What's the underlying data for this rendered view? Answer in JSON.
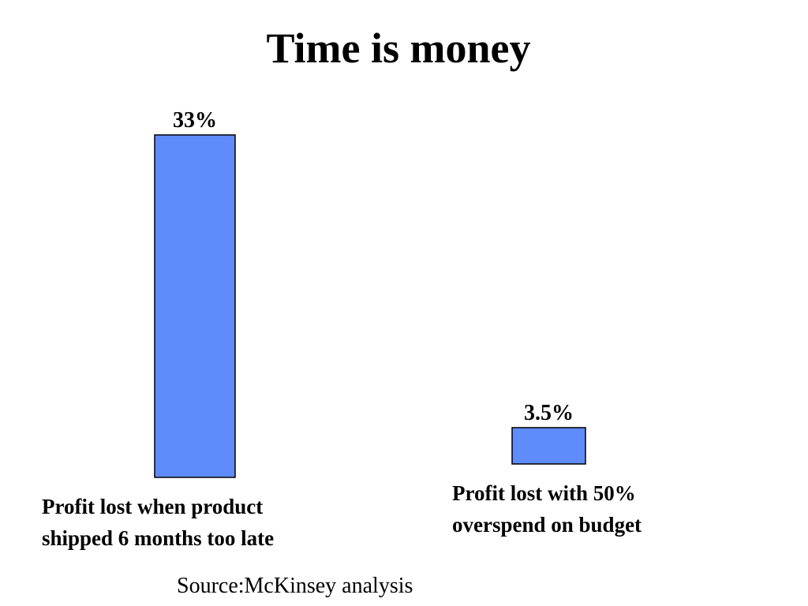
{
  "slide": {
    "title": "Time is money",
    "source": "Source:McKinsey analysis"
  },
  "colors": {
    "bar_fill": "#5f8bfb",
    "bar_stroke": "#000000",
    "background": "#ffffff"
  },
  "chart_data": {
    "type": "bar",
    "title": "Time is money",
    "categories": [
      "Profit lost when product shipped 6 months too late",
      "Profit lost with 50% overspend on budget"
    ],
    "values": [
      33,
      3.5
    ],
    "value_labels": [
      "33%",
      "3.5%"
    ],
    "unit": "%",
    "xlabel": "",
    "ylabel": "",
    "grid": false,
    "legend": "none"
  }
}
